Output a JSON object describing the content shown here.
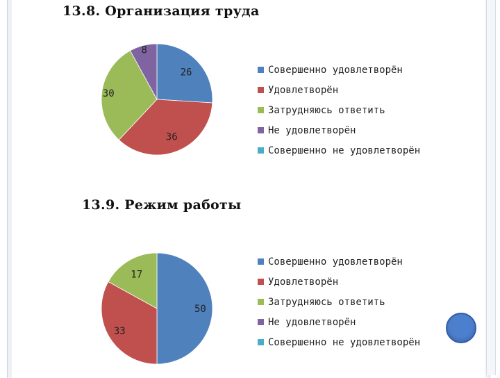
{
  "chart_data": [
    {
      "type": "pie",
      "title": "13.8. Организация труда",
      "categories": [
        "Совершенно удовлетворён",
        "Удовлетворён",
        "Затрудняюсь ответить",
        "Не удовлетворён",
        "Совершенно не удовлетворён"
      ],
      "values": [
        26,
        36,
        30,
        8,
        0
      ],
      "colors": [
        "#4f81bd",
        "#c0504d",
        "#9bbb59",
        "#8064a2",
        "#4bacc6"
      ],
      "legend": "right"
    },
    {
      "type": "pie",
      "title": "13.9. Режим работы",
      "categories": [
        "Совершенно удовлетворён",
        "Удовлетворён",
        "Затрудняюсь ответить",
        "Не удовлетворён",
        "Совершенно не удовлетворён"
      ],
      "values": [
        50,
        33,
        17,
        0,
        0
      ],
      "colors": [
        "#4f81bd",
        "#c0504d",
        "#9bbb59",
        "#8064a2",
        "#4bacc6"
      ],
      "legend": "right"
    }
  ]
}
